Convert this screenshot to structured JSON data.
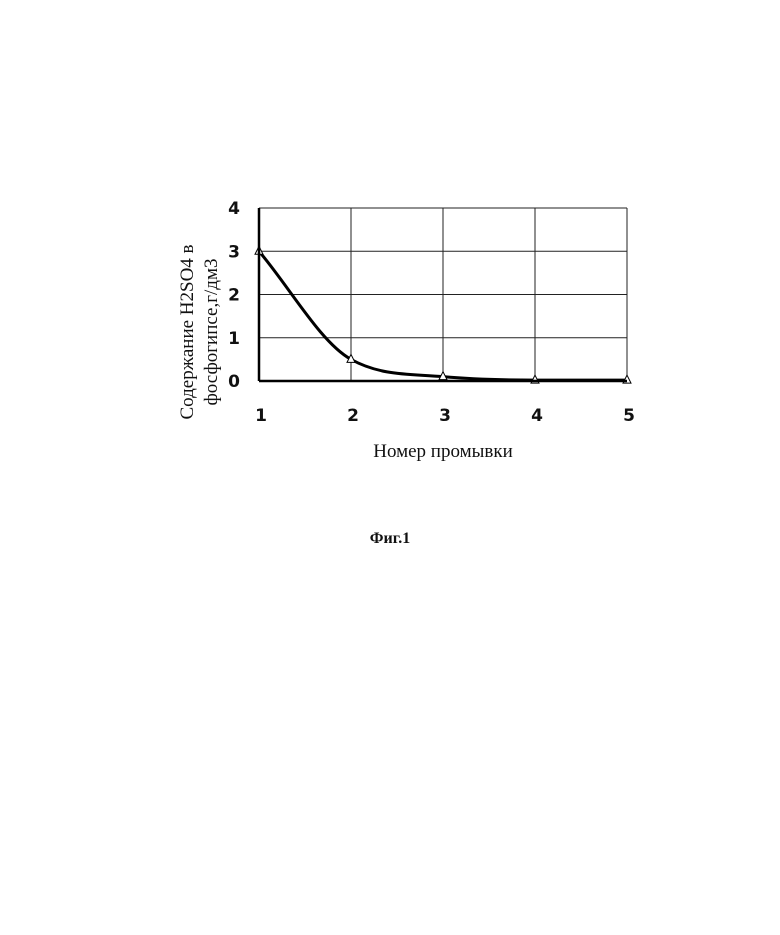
{
  "chart_data": {
    "type": "line",
    "xlabel": "Номер промывки",
    "ylabel_lines": [
      "Содержание H2SO4 в",
      "фосфогипсе,г/дм3"
    ],
    "x": [
      1,
      2,
      3,
      4,
      5
    ],
    "xticks": [
      "1",
      "2",
      "3",
      "4",
      "5"
    ],
    "yticks": [
      "0",
      "1",
      "2",
      "3",
      "4"
    ],
    "xlim": [
      1,
      5
    ],
    "ylim": [
      0,
      4
    ],
    "grid": true,
    "series": [
      {
        "values": [
          3,
          0.5,
          0.1,
          0.02,
          0.02
        ],
        "marker": "triangle",
        "smooth": true
      }
    ]
  },
  "caption": "Фиг.1"
}
